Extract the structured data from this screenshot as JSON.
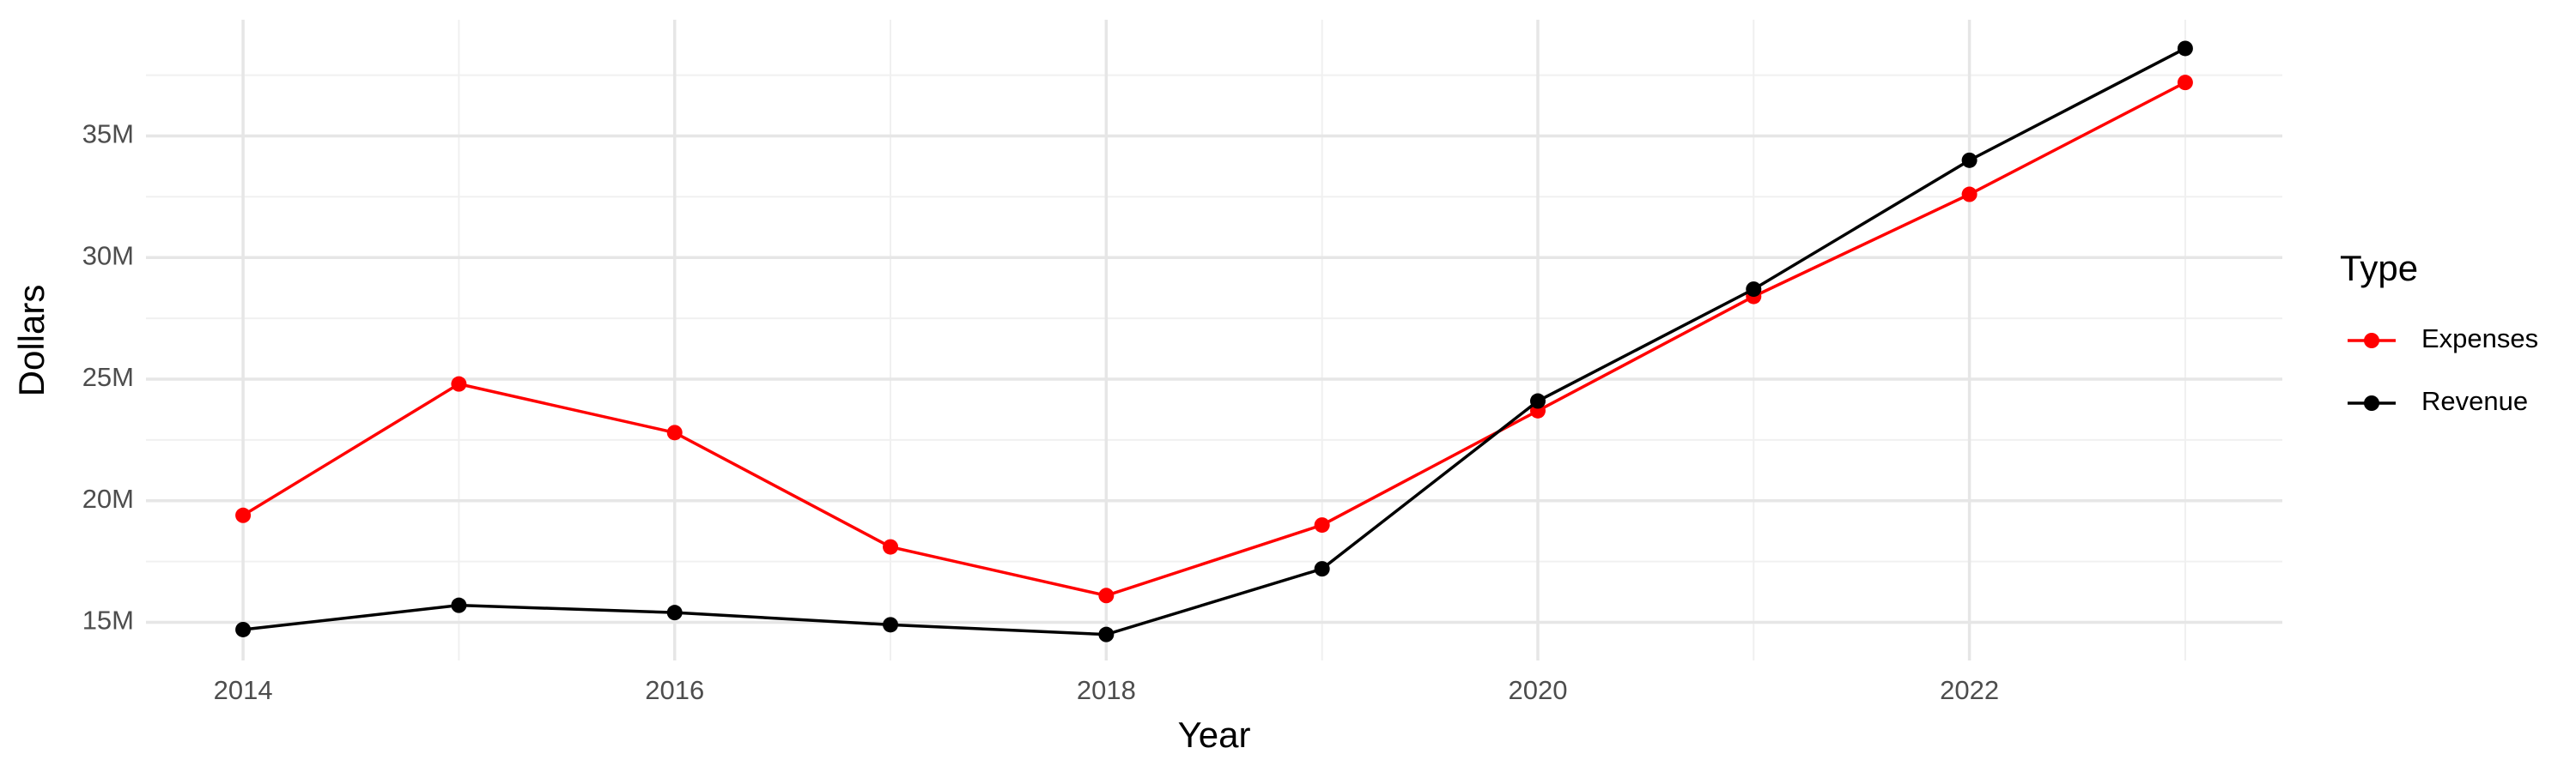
{
  "chart_data": {
    "type": "line",
    "x_label": "Year",
    "y_label": "Dollars",
    "x": [
      2014,
      2015,
      2016,
      2017,
      2018,
      2019,
      2020,
      2021,
      2022,
      2023
    ],
    "series": [
      {
        "name": "Expenses",
        "color": "#ff0000",
        "values": [
          19400000,
          24800000,
          22800000,
          18100000,
          16100000,
          19000000,
          23700000,
          28400000,
          32600000,
          37200000
        ]
      },
      {
        "name": "Revenue",
        "color": "#000000",
        "values": [
          14700000,
          15700000,
          15400000,
          14900000,
          14500000,
          17200000,
          24100000,
          28700000,
          34000000,
          38600000
        ]
      }
    ],
    "xlim": [
      2013.55,
      2023.45
    ],
    "xticks": [
      2014,
      2016,
      2018,
      2020,
      2022
    ],
    "ylim": [
      13430000,
      39780000
    ],
    "yticks": [
      {
        "value": 15000000,
        "label": "15M"
      },
      {
        "value": 20000000,
        "label": "20M"
      },
      {
        "value": 25000000,
        "label": "25M"
      },
      {
        "value": 30000000,
        "label": "30M"
      },
      {
        "value": 35000000,
        "label": "35M"
      }
    ],
    "grid": true,
    "legend_title": "Type",
    "legend_position": "right"
  }
}
